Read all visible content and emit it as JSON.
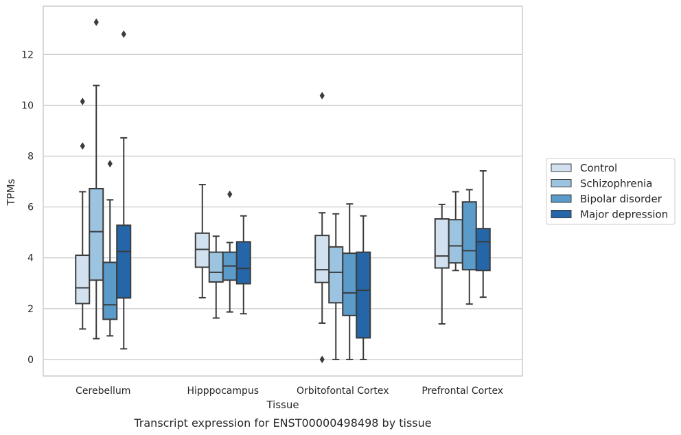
{
  "chart_data": {
    "type": "box",
    "caption": "Transcript expression for ENST00000498498 by tissue",
    "xlabel": "Tissue",
    "ylabel": "TPMs",
    "ylim": [
      -0.65,
      13.9
    ],
    "yticks": [
      0,
      2,
      4,
      6,
      8,
      10,
      12
    ],
    "grid": "horizontal",
    "legend_position": "right",
    "categories": [
      "Cerebellum",
      "Hipppocampus",
      "Orbitofontal Cortex",
      "Prefrontal Cortex"
    ],
    "series": [
      {
        "name": "Control",
        "color": "#d2e1f0",
        "boxes": [
          {
            "whislo": 1.2,
            "q1": 2.2,
            "med": 2.82,
            "q3": 4.1,
            "whishi": 6.6,
            "fliers": [
              8.4,
              10.15
            ]
          },
          {
            "whislo": 2.43,
            "q1": 3.63,
            "med": 4.33,
            "q3": 4.97,
            "whishi": 6.88,
            "fliers": []
          },
          {
            "whislo": 1.43,
            "q1": 3.03,
            "med": 3.53,
            "q3": 4.88,
            "whishi": 5.77,
            "fliers": [
              0.0,
              10.38
            ]
          },
          {
            "whislo": 1.4,
            "q1": 3.6,
            "med": 4.07,
            "q3": 5.53,
            "whishi": 6.1,
            "fliers": []
          }
        ]
      },
      {
        "name": "Schizophrenia",
        "color": "#9cc4e0",
        "boxes": [
          {
            "whislo": 0.82,
            "q1": 3.12,
            "med": 5.03,
            "q3": 6.72,
            "whishi": 10.78,
            "fliers": [
              13.27
            ]
          },
          {
            "whislo": 1.63,
            "q1": 3.05,
            "med": 3.43,
            "q3": 4.22,
            "whishi": 4.85,
            "fliers": []
          },
          {
            "whislo": 0.0,
            "q1": 2.23,
            "med": 3.43,
            "q3": 4.43,
            "whishi": 5.73,
            "fliers": []
          },
          {
            "whislo": 3.5,
            "q1": 3.8,
            "med": 4.47,
            "q3": 5.5,
            "whishi": 6.6,
            "fliers": []
          }
        ]
      },
      {
        "name": "Bipolar disorder",
        "color": "#5a9bca",
        "boxes": [
          {
            "whislo": 0.93,
            "q1": 1.58,
            "med": 2.15,
            "q3": 3.82,
            "whishi": 6.28,
            "fliers": [
              7.7
            ]
          },
          {
            "whislo": 1.87,
            "q1": 3.12,
            "med": 3.68,
            "q3": 4.22,
            "whishi": 4.6,
            "fliers": [
              6.5
            ]
          },
          {
            "whislo": 0.0,
            "q1": 1.73,
            "med": 2.62,
            "q3": 4.18,
            "whishi": 6.12,
            "fliers": []
          },
          {
            "whislo": 2.18,
            "q1": 3.53,
            "med": 4.28,
            "q3": 6.2,
            "whishi": 6.68,
            "fliers": []
          }
        ]
      },
      {
        "name": "Major depression",
        "color": "#2566a8",
        "boxes": [
          {
            "whislo": 0.42,
            "q1": 2.42,
            "med": 4.25,
            "q3": 5.28,
            "whishi": 8.72,
            "fliers": [
              12.8
            ]
          },
          {
            "whislo": 1.8,
            "q1": 2.98,
            "med": 3.58,
            "q3": 4.63,
            "whishi": 5.65,
            "fliers": []
          },
          {
            "whislo": 0.0,
            "q1": 0.85,
            "med": 2.72,
            "q3": 4.22,
            "whishi": 5.65,
            "fliers": []
          },
          {
            "whislo": 2.45,
            "q1": 3.5,
            "med": 4.63,
            "q3": 5.15,
            "whishi": 7.42,
            "fliers": []
          }
        ]
      }
    ],
    "colors": {
      "grid": "#cccccc",
      "frame": "#cccccc",
      "line": "#3b3b3b",
      "flier": "#3b3b3b"
    }
  }
}
